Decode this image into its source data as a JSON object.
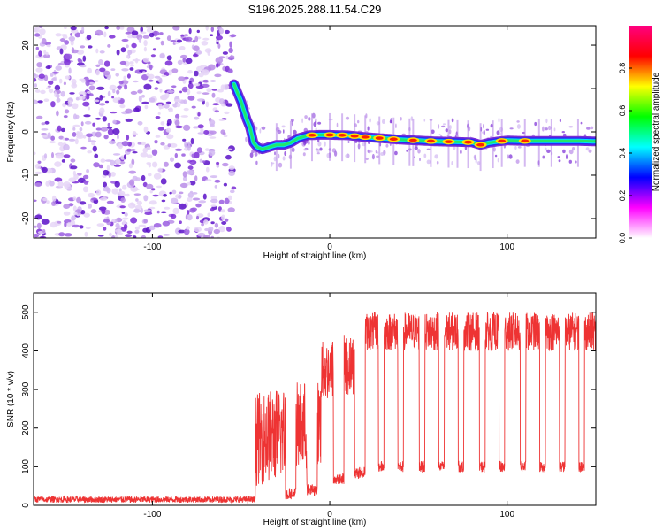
{
  "title": "S196.2025.288.11.54.C29",
  "chart_data": [
    {
      "type": "heatmap",
      "xlabel": "Height of straight line (km)",
      "ylabel": "Frequency (Hz)",
      "xlim": [
        -167,
        150
      ],
      "ylim": [
        -24.5,
        24.5
      ],
      "xticks": [
        -100,
        0,
        100
      ],
      "yticks": [
        -20,
        -10,
        0,
        10,
        20
      ],
      "colorbar": {
        "label": "Normalized spectral amplitude",
        "range": [
          0,
          1
        ],
        "ticks": [
          "0.0",
          "0.2",
          "0.4",
          "0.6",
          "0.8"
        ],
        "colors": [
          "#ffffff",
          "#ff00ff",
          "#0000ff",
          "#00ffff",
          "#00ff00",
          "#ffff00",
          "#ff0000",
          "#ff0080"
        ]
      },
      "noise_region_x": [
        -167,
        -54
      ],
      "ridge": {
        "x": [
          -54,
          -50,
          -47,
          -45,
          -43,
          -41,
          -38,
          -34,
          -30,
          -26,
          -22,
          -18,
          -12,
          -6,
          0,
          10,
          20,
          30,
          40,
          50,
          60,
          70,
          80,
          85,
          90,
          95,
          100,
          110,
          120,
          130,
          140,
          150
        ],
        "freq": [
          11,
          7,
          3,
          1,
          -2.5,
          -3.5,
          -4,
          -3.5,
          -3,
          -3,
          -2.5,
          -1.5,
          -0.8,
          -0.7,
          -0.7,
          -0.8,
          -1.2,
          -1.5,
          -1.8,
          -2,
          -2.2,
          -2.3,
          -2.4,
          -3,
          -2.5,
          -2.2,
          -2,
          -2.1,
          -2.1,
          -2.1,
          -2.1,
          -2.2
        ],
        "peaks_x": [
          -10,
          0,
          7,
          14,
          20,
          28,
          36,
          47,
          57,
          67,
          78,
          85,
          97,
          110
        ]
      }
    },
    {
      "type": "line",
      "xlabel": "Height of straight line (km)",
      "ylabel": "SNR (10 * v/v)",
      "xlim": [
        -167,
        150
      ],
      "ylim": [
        0,
        550
      ],
      "xticks": [
        -100,
        0,
        100
      ],
      "yticks": [
        0,
        100,
        200,
        300,
        400,
        500
      ],
      "color": "#ee3333",
      "segments": [
        {
          "x": [
            -167,
            -42
          ],
          "level": 15,
          "noise": 8
        },
        {
          "x": [
            -42,
            -5
          ],
          "level": 200,
          "noise": 120
        },
        {
          "x": [
            -5,
            20
          ],
          "level": 330,
          "noise": 80
        },
        {
          "x": [
            20,
            150
          ],
          "level": 450,
          "noise": 50
        }
      ],
      "dips": [
        {
          "x": -22,
          "value": 30
        },
        {
          "x": -10,
          "value": 40
        },
        {
          "x": 5,
          "value": 70
        },
        {
          "x": 17,
          "value": 85
        },
        {
          "x": 29,
          "value": 100
        },
        {
          "x": 40,
          "value": 100
        },
        {
          "x": 52,
          "value": 100
        },
        {
          "x": 63,
          "value": 100
        },
        {
          "x": 74,
          "value": 100
        },
        {
          "x": 86,
          "value": 100
        },
        {
          "x": 97,
          "value": 100
        },
        {
          "x": 109,
          "value": 100
        },
        {
          "x": 120,
          "value": 100
        },
        {
          "x": 131,
          "value": 100
        },
        {
          "x": 142,
          "value": 100
        }
      ]
    }
  ]
}
